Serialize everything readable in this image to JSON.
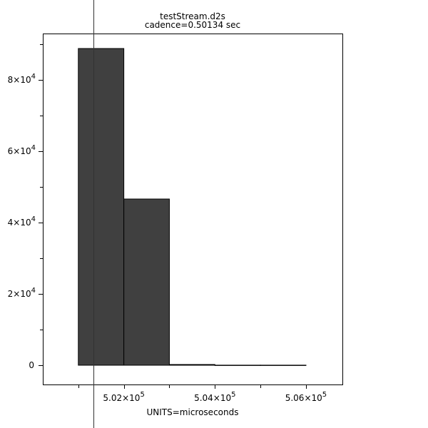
{
  "chart_data": {
    "type": "bar",
    "title": "testStream.d2s",
    "subtitle": "cadence=0.50134 sec",
    "xlabel": "UNITS=microseconds",
    "ylabel": "",
    "bins": [
      {
        "x0": 501000,
        "x1": 502000,
        "count": 88800
      },
      {
        "x0": 502000,
        "x1": 503000,
        "count": 46600
      },
      {
        "x0": 503000,
        "x1": 504000,
        "count": 200
      },
      {
        "x0": 504000,
        "x1": 505000,
        "count": 20
      },
      {
        "x0": 505000,
        "x1": 506000,
        "count": 20
      }
    ],
    "xlim": [
      500220,
      506800
    ],
    "ylim": [
      -5600,
      93000
    ],
    "x_ticks": [
      {
        "value": 502000,
        "mantissa": "5.02",
        "exp": "5"
      },
      {
        "value": 504000,
        "mantissa": "5.04",
        "exp": "5"
      },
      {
        "value": 506000,
        "mantissa": "5.06",
        "exp": "5"
      }
    ],
    "y_ticks": [
      {
        "value": 0,
        "mantissa": "0",
        "exp": ""
      },
      {
        "value": 20000,
        "mantissa": "2",
        "exp": "4"
      },
      {
        "value": 40000,
        "mantissa": "4",
        "exp": "4"
      },
      {
        "value": 60000,
        "mantissa": "6",
        "exp": "4"
      },
      {
        "value": 80000,
        "mantissa": "8",
        "exp": "4"
      }
    ],
    "cadence_marker_x": 501340,
    "bar_color": "#404040",
    "grid": false,
    "legend": "none"
  }
}
